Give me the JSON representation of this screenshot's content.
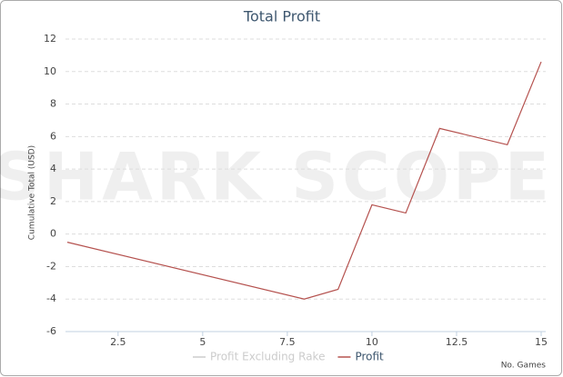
{
  "chart_data": {
    "type": "line",
    "title": "Total Profit",
    "watermark": "SHARK SCOPE",
    "x_label": "No. Games",
    "y_label": "Cumulative Total (USD)",
    "x": [
      1,
      8,
      9,
      10,
      11,
      12,
      14,
      15
    ],
    "series": [
      {
        "name": "Profit Excluding Rake",
        "color": "#cccccc",
        "visible": false
      },
      {
        "name": "Profit",
        "color": "#b5524f",
        "visible": true,
        "values": [
          -0.5,
          -4,
          -3.4,
          1.8,
          1.3,
          6.5,
          5.5,
          10.6
        ]
      }
    ],
    "xlim": [
      1,
      15
    ],
    "xticks": [
      2.5,
      5,
      7.5,
      10,
      12.5,
      15
    ],
    "ylim": [
      -6,
      12
    ],
    "yticks": [
      -6,
      -4,
      -2,
      0,
      2,
      4,
      6,
      8,
      10,
      12
    ],
    "grid": true,
    "legend": "bottom"
  }
}
